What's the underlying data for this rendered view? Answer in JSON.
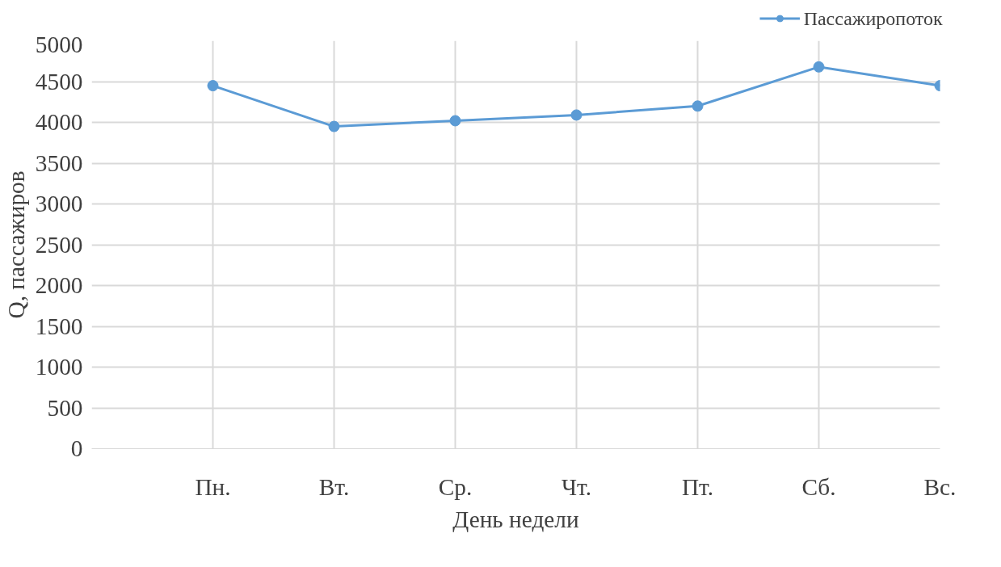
{
  "chart_data": {
    "type": "line",
    "xlabel": "День недели",
    "ylabel": "Q, пассажиров",
    "categories": [
      null,
      "Пн.",
      "Вт.",
      "Ср.",
      "Чт.",
      "Пт.",
      "Сб.",
      "Вс."
    ],
    "series": [
      {
        "name": "Пассажиропоток",
        "color": "#5b9bd5",
        "values": [
          null,
          4450,
          3950,
          4020,
          4090,
          4200,
          4680,
          4450
        ]
      }
    ],
    "ylim": [
      0,
      5000
    ],
    "yticks": [
      0,
      500,
      1000,
      1500,
      2000,
      2500,
      3000,
      3500,
      4000,
      4500,
      5000
    ],
    "grid": true,
    "legend": "top right",
    "marker": "circle",
    "line_style": "solid"
  }
}
